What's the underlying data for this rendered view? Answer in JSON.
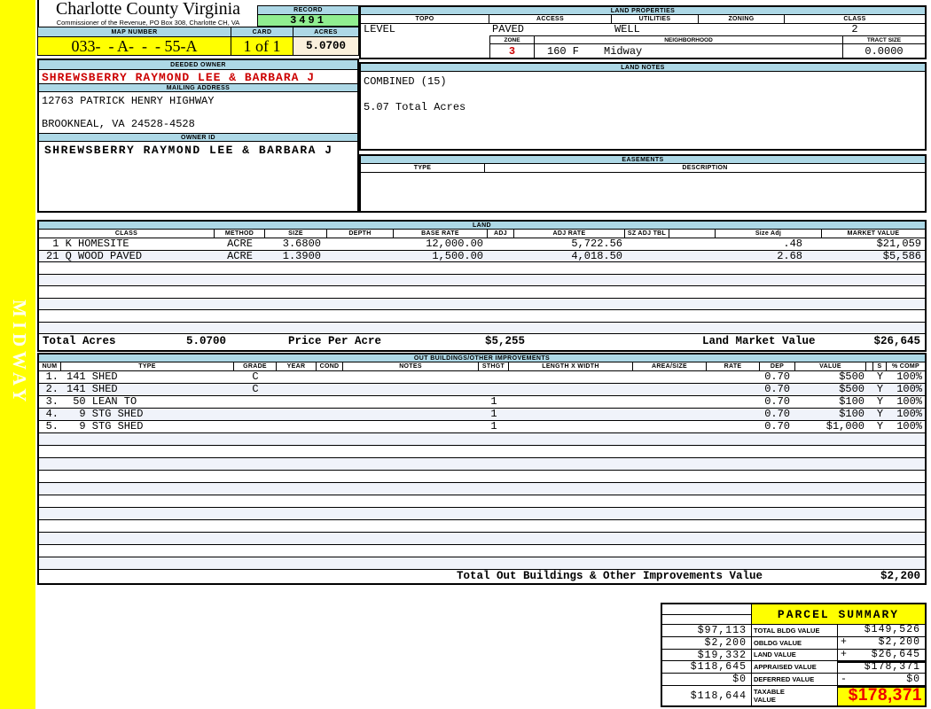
{
  "header": {
    "county": "Charlotte County Virginia",
    "office_line": "Commissioner of the Revenue, PO Box 308, Charlotte CH, VA",
    "record_label": "RECORD",
    "record_number": "3491",
    "map_number_label": "MAP NUMBER",
    "map_number": "033-  - A-  -  - 55-A",
    "card_label": "CARD",
    "card": "1 of 1",
    "acres_label": "ACRES",
    "acres": "5.0700"
  },
  "sidebar": {
    "vertical_label": "MIDWAY"
  },
  "land_properties": {
    "title": "LAND PROPERTIES",
    "topo_label": "TOPO",
    "topo": "LEVEL",
    "access_label": "ACCESS",
    "access": "PAVED",
    "utilities_label": "UTILITIES",
    "utilities": "WELL",
    "zoning_label": "ZONING",
    "zoning": "",
    "class_label": "CLASS",
    "class": "2",
    "zone_label": "ZONE",
    "zone": "3",
    "neighborhood_label": "NEIGHBORHOOD",
    "neighborhood_code": "160 F",
    "neighborhood_name": "Midway",
    "tract_size_label": "TRACT SIZE",
    "tract_size": "0.0000"
  },
  "owner": {
    "deeded_owner_label": "DEEDED OWNER",
    "deeded_owner": "SHREWSBERRY RAYMOND LEE & BARBARA J",
    "mailing_address_label": "MAILING ADDRESS",
    "address_line1": "12763 PATRICK HENRY HIGHWAY",
    "address_line2": "BROOKNEAL, VA 24528-4528",
    "owner_id_label": "OWNER ID",
    "owner_id": "SHREWSBERRY RAYMOND LEE & BARBARA J"
  },
  "land_notes": {
    "title": "LAND NOTES",
    "line1": "COMBINED (15)",
    "line2": "5.07 Total Acres"
  },
  "easements": {
    "title": "EASEMENTS",
    "type_label": "TYPE",
    "description_label": "DESCRIPTION"
  },
  "land": {
    "title": "LAND",
    "headers": [
      "CLASS",
      "METHOD",
      "SIZE",
      "DEPTH",
      "BASE RATE",
      "ADJ",
      "ADJ RATE",
      "SZ ADJ TBL",
      "",
      "Size Adj",
      "MARKET VALUE"
    ],
    "rows": [
      [
        " 1 K HOMESITE",
        "ACRE",
        "3.6800",
        "",
        "12,000.00",
        "",
        "5,722.56",
        "",
        "",
        ".48",
        "$21,059"
      ],
      [
        "21 Q WOOD PAVED",
        "ACRE",
        "1.3900",
        "",
        "1,500.00",
        "",
        "4,018.50",
        "",
        "",
        "2.68",
        "$5,586"
      ]
    ],
    "totals": {
      "total_acres_label": "Total Acres",
      "total_acres": "5.0700",
      "price_per_acre_label": "Price Per Acre",
      "price_per_acre": "$5,255",
      "land_market_value_label": "Land Market Value",
      "land_market_value": "$26,645"
    }
  },
  "out_buildings": {
    "title": "OUT BUILDINGS/OTHER IMPROVEMENTS",
    "headers": [
      "NUM",
      "TYPE",
      "GRADE",
      "YEAR",
      "COND",
      "NOTES",
      "STHGT",
      "LENGTH X WIDTH",
      "AREA/SIZE",
      "RATE",
      "DEP",
      "VALUE",
      "",
      "S",
      "% COMP"
    ],
    "rows": [
      [
        "1.",
        "141 SHED",
        "C",
        "",
        "",
        "",
        "",
        "",
        "",
        "",
        "0.70",
        "$500",
        "",
        "Y",
        "100%"
      ],
      [
        "2.",
        "141 SHED",
        "C",
        "",
        "",
        "",
        "",
        "",
        "",
        "",
        "0.70",
        "$500",
        "",
        "Y",
        "100%"
      ],
      [
        "3.",
        " 50 LEAN TO",
        "",
        "",
        "",
        "",
        "1",
        "",
        "",
        "",
        "0.70",
        "$100",
        "",
        "Y",
        "100%"
      ],
      [
        "4.",
        "  9 STG SHED",
        "",
        "",
        "",
        "",
        "1",
        "",
        "",
        "",
        "0.70",
        "$100",
        "",
        "Y",
        "100%"
      ],
      [
        "5.",
        "  9 STG SHED",
        "",
        "",
        "",
        "",
        "1",
        "",
        "",
        "",
        "0.70",
        "$1,000",
        "",
        "Y",
        "100%"
      ]
    ],
    "total_label": "Total Out Buildings & Other Improvements Value",
    "total_value": "$2,200"
  },
  "parcel_summary": {
    "title": "PARCEL SUMMARY",
    "rows": [
      {
        "left": "$97,113",
        "label": "TOTAL BLDG VALUE",
        "sign": "",
        "value": "$149,526"
      },
      {
        "left": "$2,200",
        "label": "OBLDG VALUE",
        "sign": "+",
        "value": "$2,200"
      },
      {
        "left": "$19,332",
        "label": "LAND VALUE",
        "sign": "+",
        "value": "$26,645"
      },
      {
        "left": "$118,645",
        "label": "APPRAISED VALUE",
        "sign": "",
        "value": "$178,371"
      },
      {
        "left": "$0",
        "label": "DEFERRED VALUE",
        "sign": "-",
        "value": "$0"
      }
    ],
    "taxable": {
      "left": "$118,644",
      "label_line1": "TAXABLE",
      "label_line2": "VALUE",
      "value": "$178,371"
    }
  },
  "colors": {
    "accent_yellow": "#FFFF00",
    "header_blue": "#ADD8E6",
    "record_green": "#90EE90",
    "acres_cream": "#FAF0DC",
    "owner_red": "#CC0000",
    "taxable_red": "#EE0000",
    "alt_row": "#F0F3FA"
  }
}
